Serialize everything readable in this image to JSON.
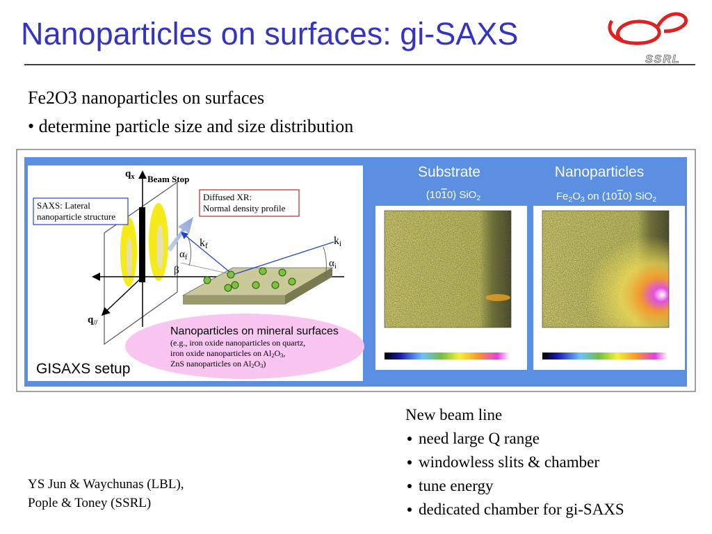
{
  "header": {
    "title": "Nanoparticles on surfaces: gi-SAXS",
    "logo": "SSRL"
  },
  "intro": {
    "heading": "Fe2O3 nanoparticles on surfaces",
    "bullet": "• determine particle size and size distribution"
  },
  "figure": {
    "setup": {
      "caption": "GISAXS setup",
      "beam_stop": "Beam Stop",
      "saxs_box": [
        "SAXS: Lateral",
        "nanoparticle structure"
      ],
      "xr_box": [
        "Diffused XR:",
        "Normal density profile"
      ],
      "qx": [
        {
          "t": "q"
        },
        {
          "sub": "x"
        }
      ],
      "qpar": [
        {
          "t": "q"
        },
        {
          "sub": "//"
        }
      ],
      "kf": [
        {
          "t": "k"
        },
        {
          "sub": "f"
        }
      ],
      "ki": [
        {
          "t": "k"
        },
        {
          "sub": "i"
        }
      ],
      "alpha_f": [
        {
          "t": "α"
        },
        {
          "sub": "f"
        }
      ],
      "alpha_i": [
        {
          "t": "α"
        },
        {
          "sub": "i"
        }
      ],
      "beta": [
        {
          "t": "β"
        }
      ],
      "ellipse": {
        "title": "Nanoparticles on mineral surfaces",
        "lines": [
          [
            {
              "t": "(e.g., iron oxide nanoparticles on quartz,"
            }
          ],
          [
            {
              "t": "iron oxide nanoparticles on Al"
            },
            {
              "sub": "2"
            },
            {
              "t": "O"
            },
            {
              "sub": "3"
            },
            {
              "t": ","
            }
          ],
          [
            {
              "t": "ZnS nanoparticles on Al"
            },
            {
              "sub": "2"
            },
            {
              "t": "O"
            },
            {
              "sub": "3"
            },
            {
              "t": ")"
            }
          ]
        ]
      }
    },
    "panels": [
      {
        "title": "Substrate",
        "subtitle": [
          {
            "t": "(10"
          },
          {
            "over": "1"
          },
          {
            "t": "0) SiO"
          },
          {
            "sub": "2"
          }
        ]
      },
      {
        "title": "Nanoparticles",
        "subtitle": [
          {
            "t": "Fe"
          },
          {
            "sub": "2"
          },
          {
            "t": "O"
          },
          {
            "sub": "3"
          },
          {
            "t": " on (10"
          },
          {
            "over": "1"
          },
          {
            "t": "0) SiO"
          },
          {
            "sub": "2"
          }
        ]
      }
    ]
  },
  "notes": {
    "heading": "New beam line",
    "items": [
      "need large Q range",
      "windowless slits & chamber",
      "tune energy",
      "dedicated chamber for gi-SAXS"
    ]
  },
  "credits": [
    "YS Jun & Waychunas (LBL),",
    "Pople & Toney (SSRL)"
  ]
}
